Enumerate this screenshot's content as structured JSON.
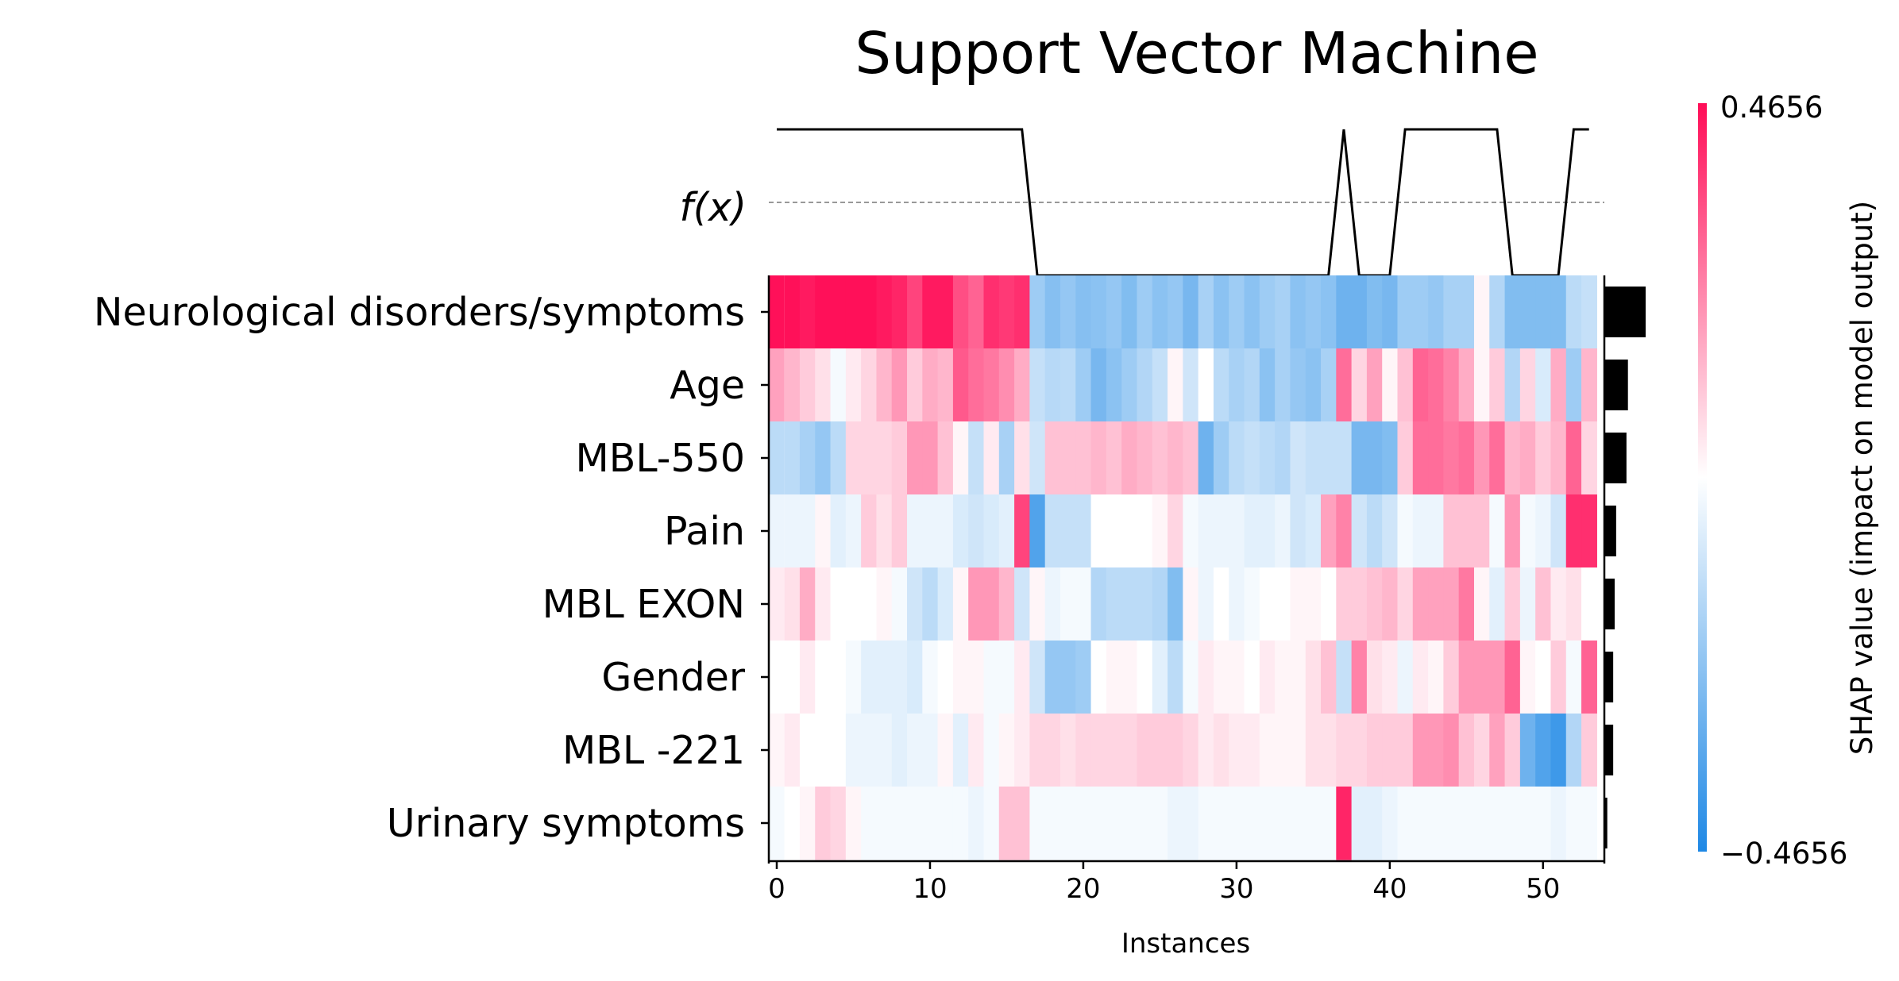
{
  "chart_data": {
    "type": "heatmap",
    "title": "Support Vector Machine",
    "xlabel": "Instances",
    "colorbar_label": "SHAP value (impact on model output)",
    "colorbar_max_label": "0.4656",
    "colorbar_min_label": "−0.4656",
    "vmin": -0.4656,
    "vmax": 0.4656,
    "fx_label": "f(x)",
    "xlim": [
      0,
      54
    ],
    "xticks": [
      0,
      10,
      20,
      30,
      40,
      50
    ],
    "colors": {
      "positive": "#ff0d57",
      "negative": "#1e88e5",
      "neutral": "#ffffff",
      "bars": "#000000"
    },
    "features": [
      "Neurological disorders/symptoms",
      "Age",
      "MBL-550",
      "Pain",
      "MBL EXON",
      "Gender",
      "MBL -221",
      "Urinary symptoms"
    ],
    "feature_importance": [
      0.28,
      0.16,
      0.15,
      0.08,
      0.07,
      0.06,
      0.06,
      0.02
    ],
    "fx_values": [
      1,
      1,
      1,
      1,
      1,
      1,
      1,
      1,
      1,
      1,
      1,
      1,
      1,
      1,
      1,
      1,
      1,
      0,
      0,
      0,
      0,
      0,
      0,
      0,
      0,
      0,
      0,
      0,
      0,
      0,
      0,
      0,
      0,
      0,
      0,
      0,
      0,
      1,
      0,
      0,
      0,
      1,
      1,
      1,
      1,
      1,
      1,
      1,
      0,
      0,
      0,
      0,
      1,
      1
    ],
    "values": [
      [
        0.46,
        0.46,
        0.44,
        0.46,
        0.46,
        0.46,
        0.46,
        0.44,
        0.42,
        0.36,
        0.44,
        0.44,
        0.34,
        0.3,
        0.4,
        0.38,
        0.4,
        -0.2,
        -0.25,
        -0.22,
        -0.25,
        -0.24,
        -0.22,
        -0.26,
        -0.2,
        -0.24,
        -0.22,
        -0.28,
        -0.18,
        -0.24,
        -0.2,
        -0.24,
        -0.2,
        -0.18,
        -0.24,
        -0.22,
        -0.24,
        -0.3,
        -0.3,
        -0.26,
        -0.28,
        -0.2,
        -0.2,
        -0.22,
        -0.18,
        -0.18,
        0.02,
        -0.16,
        -0.26,
        -0.26,
        -0.26,
        -0.26,
        -0.14,
        -0.12
      ],
      [
        0.18,
        0.14,
        0.1,
        0.06,
        -0.02,
        0.04,
        0.08,
        0.14,
        0.2,
        0.1,
        0.16,
        0.14,
        0.32,
        0.28,
        0.26,
        0.22,
        0.16,
        -0.12,
        -0.15,
        -0.14,
        -0.2,
        -0.28,
        -0.24,
        -0.2,
        -0.16,
        -0.12,
        0.02,
        -0.1,
        0.0,
        -0.14,
        -0.18,
        -0.16,
        -0.24,
        -0.18,
        -0.22,
        -0.24,
        -0.18,
        0.28,
        0.08,
        0.18,
        0.02,
        0.12,
        0.3,
        0.28,
        0.24,
        0.16,
        0.02,
        0.1,
        -0.16,
        0.08,
        -0.08,
        0.16,
        -0.2,
        0.14
      ],
      [
        -0.14,
        -0.14,
        -0.18,
        -0.22,
        -0.14,
        0.08,
        0.08,
        0.08,
        0.1,
        0.2,
        0.2,
        0.12,
        0.02,
        -0.12,
        0.04,
        -0.18,
        0.06,
        -0.1,
        0.12,
        0.12,
        0.12,
        0.14,
        0.12,
        0.16,
        0.14,
        0.12,
        0.14,
        0.12,
        -0.3,
        -0.2,
        -0.14,
        -0.12,
        -0.14,
        -0.16,
        -0.1,
        -0.12,
        -0.12,
        -0.12,
        -0.28,
        -0.28,
        -0.26,
        0.1,
        0.28,
        0.28,
        0.26,
        0.28,
        0.2,
        0.28,
        0.14,
        0.16,
        0.1,
        0.14,
        0.3,
        0.08
      ],
      [
        -0.04,
        -0.04,
        -0.04,
        0.02,
        -0.06,
        -0.04,
        0.1,
        0.06,
        0.1,
        -0.04,
        -0.04,
        -0.04,
        -0.08,
        -0.1,
        -0.08,
        -0.06,
        0.36,
        -0.36,
        -0.12,
        -0.12,
        -0.12,
        0.0,
        0.0,
        0.0,
        0.0,
        0.02,
        0.08,
        -0.02,
        -0.04,
        -0.04,
        -0.04,
        -0.06,
        -0.06,
        -0.04,
        -0.1,
        -0.08,
        0.18,
        0.24,
        -0.1,
        -0.14,
        -0.1,
        -0.02,
        -0.04,
        -0.04,
        0.12,
        0.12,
        0.12,
        -0.02,
        0.2,
        -0.02,
        -0.04,
        -0.1,
        0.4,
        0.4
      ],
      [
        0.04,
        0.06,
        0.16,
        0.04,
        0.0,
        0.0,
        0.0,
        0.02,
        -0.02,
        -0.1,
        -0.14,
        -0.08,
        0.02,
        0.2,
        0.2,
        0.14,
        -0.1,
        0.02,
        -0.04,
        -0.02,
        -0.02,
        -0.16,
        -0.14,
        -0.14,
        -0.14,
        -0.16,
        -0.26,
        0.02,
        -0.04,
        0.0,
        -0.04,
        -0.02,
        0.0,
        0.0,
        0.02,
        0.02,
        0.0,
        0.1,
        0.1,
        0.12,
        0.14,
        0.08,
        0.18,
        0.18,
        0.18,
        0.26,
        0.02,
        -0.06,
        0.1,
        -0.04,
        0.12,
        0.04,
        0.06,
        0.0
      ],
      [
        0.0,
        0.0,
        0.04,
        0.0,
        0.0,
        -0.02,
        -0.06,
        -0.06,
        -0.06,
        -0.08,
        -0.02,
        0.0,
        0.02,
        0.02,
        -0.02,
        -0.02,
        0.04,
        -0.1,
        -0.22,
        -0.22,
        -0.2,
        0.0,
        0.02,
        0.02,
        0.0,
        -0.06,
        -0.14,
        -0.02,
        0.04,
        0.02,
        0.02,
        0.0,
        0.04,
        0.02,
        0.02,
        0.06,
        0.12,
        -0.12,
        0.24,
        0.06,
        0.04,
        -0.04,
        0.04,
        0.02,
        0.1,
        0.2,
        0.2,
        0.2,
        0.3,
        0.02,
        0.0,
        0.1,
        -0.02,
        0.3
      ],
      [
        0.02,
        0.04,
        0.0,
        0.0,
        0.0,
        -0.04,
        -0.04,
        -0.04,
        -0.06,
        -0.04,
        -0.04,
        0.02,
        -0.06,
        0.04,
        -0.02,
        0.02,
        0.04,
        0.08,
        0.08,
        0.06,
        0.08,
        0.08,
        0.08,
        0.08,
        0.1,
        0.1,
        0.1,
        0.08,
        0.04,
        0.06,
        0.04,
        0.04,
        0.02,
        0.02,
        0.02,
        0.06,
        0.06,
        0.08,
        0.08,
        0.1,
        0.1,
        0.1,
        0.2,
        0.2,
        0.22,
        0.12,
        0.08,
        0.18,
        0.1,
        -0.3,
        -0.36,
        -0.4,
        -0.16,
        0.1
      ],
      [
        -0.02,
        0.0,
        0.02,
        0.1,
        0.08,
        0.02,
        -0.02,
        -0.02,
        -0.02,
        -0.02,
        -0.02,
        -0.02,
        -0.02,
        -0.04,
        -0.02,
        0.12,
        0.12,
        -0.02,
        -0.02,
        -0.02,
        -0.02,
        -0.02,
        -0.02,
        -0.02,
        -0.02,
        -0.02,
        -0.04,
        -0.04,
        -0.02,
        -0.02,
        -0.02,
        -0.02,
        -0.02,
        -0.02,
        -0.02,
        -0.02,
        -0.02,
        0.42,
        -0.06,
        -0.06,
        -0.04,
        -0.02,
        -0.02,
        -0.02,
        -0.02,
        -0.02,
        -0.02,
        -0.02,
        -0.02,
        -0.02,
        -0.02,
        -0.04,
        -0.02,
        -0.02
      ]
    ]
  }
}
